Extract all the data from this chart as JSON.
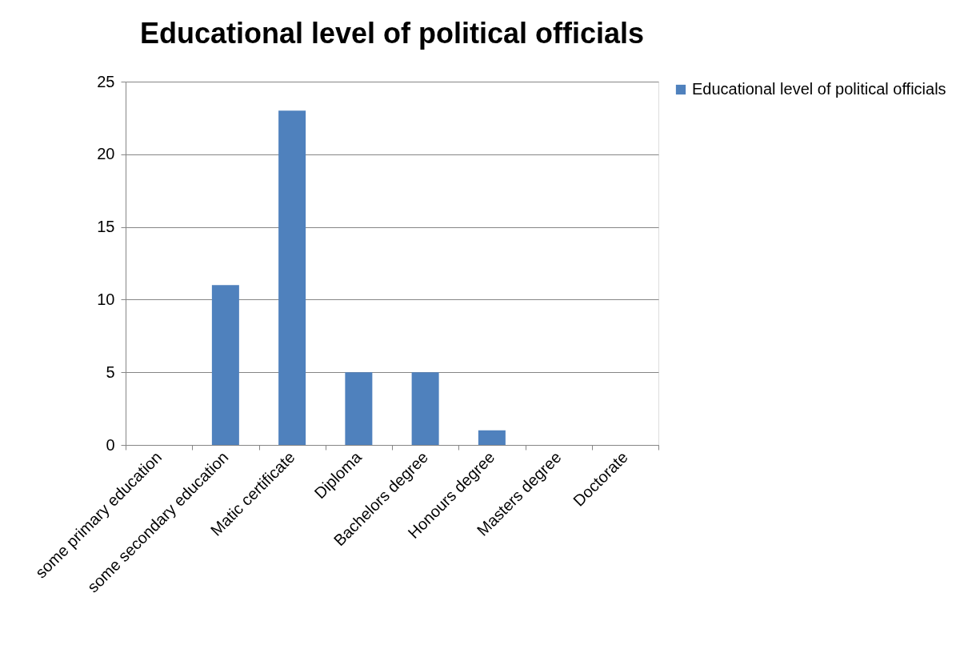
{
  "chart_data": {
    "type": "bar",
    "title": "Educational level of political officials",
    "categories": [
      "some primary education",
      "some secondary education",
      "Matic certificate",
      "Diploma",
      "Bachelors degree",
      "Honours degree",
      "Masters degree",
      "Doctorate"
    ],
    "series": [
      {
        "name": "Educational level of political officials",
        "color": "#4f81bd",
        "values": [
          0,
          11,
          23,
          5,
          5,
          1,
          0,
          0
        ]
      }
    ],
    "ylim": [
      0,
      25
    ],
    "yticks": [
      0,
      5,
      10,
      15,
      20,
      25
    ],
    "grid": "y",
    "legend": "right"
  }
}
